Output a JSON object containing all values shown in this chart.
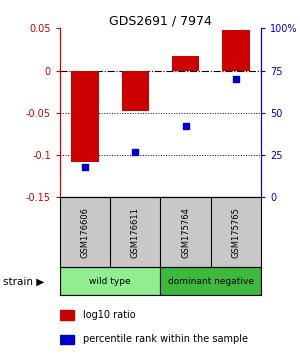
{
  "title": "GDS2691 / 7974",
  "samples": [
    "GSM176606",
    "GSM176611",
    "GSM175764",
    "GSM175765"
  ],
  "log10_ratio": [
    -0.108,
    -0.048,
    0.017,
    0.048
  ],
  "percentile_rank": [
    18,
    27,
    42,
    70
  ],
  "groups": [
    {
      "label": "wild type",
      "samples": [
        0,
        1
      ],
      "color": "#90ee90"
    },
    {
      "label": "dominant negative",
      "samples": [
        2,
        3
      ],
      "color": "#3dba3d"
    }
  ],
  "bar_color": "#cc0000",
  "dot_color": "#0000cc",
  "ylim_left": [
    -0.15,
    0.05
  ],
  "ylim_right": [
    0,
    100
  ],
  "y_ticks_left": [
    -0.15,
    -0.1,
    -0.05,
    0,
    0.05
  ],
  "y_ticks_right": [
    0,
    25,
    50,
    75,
    100
  ],
  "dotted_hlines": [
    -0.05,
    -0.1
  ],
  "left_tick_color": "#cc0000",
  "right_tick_color": "#0000cc",
  "sample_box_color": "#c8c8c8",
  "legend_items": [
    {
      "color": "#cc0000",
      "label": "log10 ratio"
    },
    {
      "color": "#0000cc",
      "label": "percentile rank within the sample"
    }
  ]
}
